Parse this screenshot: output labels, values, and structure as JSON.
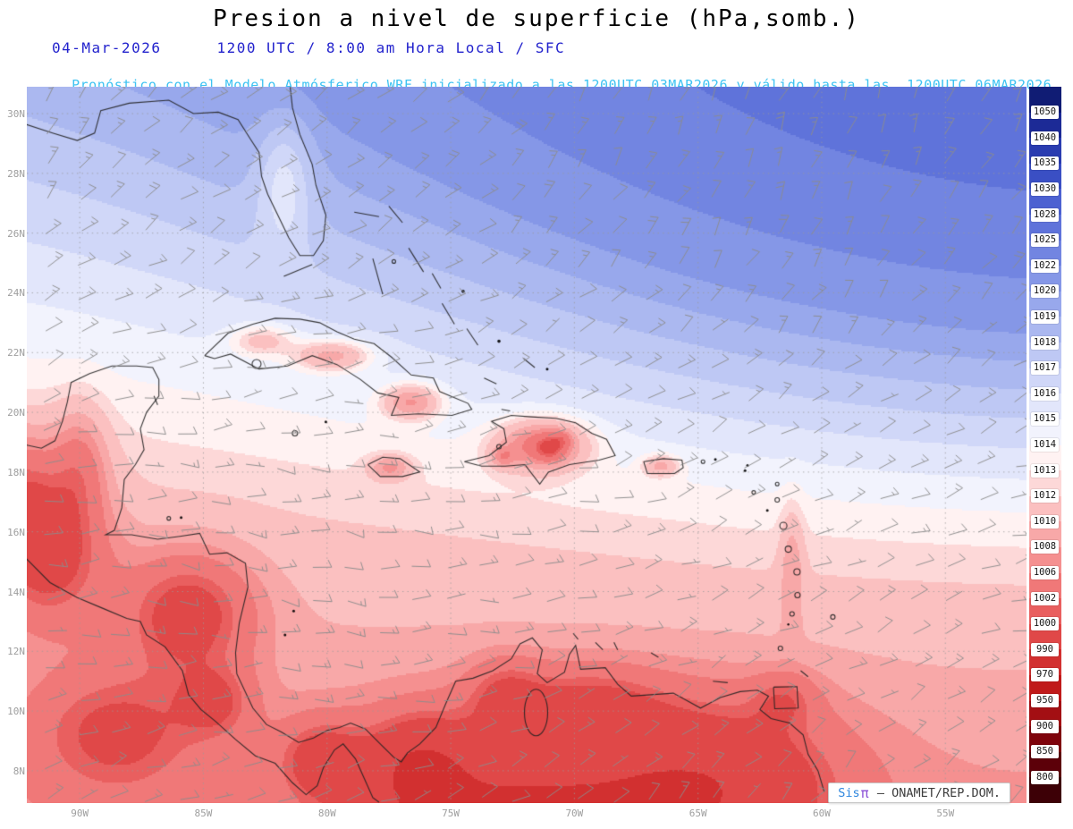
{
  "header": {
    "title": "Presion a nivel de superficie (hPa,somb.)",
    "date": "04-Mar-2026",
    "time_info": "1200 UTC / 8:00 am Hora Local / SFC",
    "forecast_info": "Pronóstico con el Modelo Atmósferico WRF inicializado a las 1200UTC_03MAR2026 y válido hasta las  1200UTC_06MAR2026"
  },
  "attribution": {
    "prefix": "Sis",
    "pi": "π",
    "suffix": " – ONAMET/REP.DOM."
  },
  "colors": {
    "title_text": "#000000",
    "date_line": "#2323cd",
    "forecast_line": "#3ec3f2",
    "axis_labels": "#9e9e9e",
    "coastline": "#222222",
    "wind_barbs": "#8c8c8c",
    "grid_dots": "#9b9b9b"
  },
  "chart_data": {
    "type": "heatmap",
    "title": "Presion a nivel de superficie (hPa,somb.)",
    "variable": "Presion a nivel de superficie",
    "units": "hPa",
    "model": "WRF",
    "init": "1200UTC_03MAR2026",
    "valid": "1200UTC_06MAR2026",
    "lat_ticks": [
      "30N",
      "28N",
      "26N",
      "24N",
      "22N",
      "20N",
      "18N",
      "16N",
      "14N",
      "12N",
      "10N",
      "8N"
    ],
    "lat_tick_values": [
      30,
      28,
      26,
      24,
      22,
      20,
      18,
      16,
      14,
      12,
      10,
      8
    ],
    "lon_ticks": [
      "90W",
      "85W",
      "80W",
      "75W",
      "70W",
      "65W",
      "60W",
      "55W"
    ],
    "lon_tick_values": [
      -90,
      -85,
      -80,
      -75,
      -70,
      -65,
      -60,
      -55
    ],
    "lat_range": [
      6.92,
      30.9
    ],
    "lon_range": [
      -92.14,
      -51.72
    ],
    "grid": "dotted",
    "wind_barbs": true,
    "colorbar_labels": [
      "1050",
      "1040",
      "1035",
      "1030",
      "1028",
      "1025",
      "1022",
      "1020",
      "1019",
      "1018",
      "1017",
      "1016",
      "1015",
      "1014",
      "1013",
      "1012",
      "1010",
      "1008",
      "1006",
      "1002",
      "1000",
      "990",
      "970",
      "950",
      "900",
      "850",
      "800"
    ],
    "levels_hpa": [
      800,
      850,
      900,
      950,
      970,
      990,
      1000,
      1002,
      1006,
      1008,
      1010,
      1012,
      1013,
      1014,
      1015,
      1016,
      1017,
      1018,
      1019,
      1020,
      1022,
      1025,
      1028,
      1030,
      1035,
      1040,
      1050
    ],
    "palette": [
      "#3d0006",
      "#5c0009",
      "#7f040c",
      "#a30f13",
      "#c01a1a",
      "#d23030",
      "#e04848",
      "#e95f5f",
      "#f07878",
      "#f59090",
      "#f8a8a8",
      "#fbc0c0",
      "#fdd8d8",
      "#fff2f2",
      "#f2f3fd",
      "#e2e6fb",
      "#d0d7f8",
      "#bec8f4",
      "#abb8f0",
      "#98a8ec",
      "#8597e7",
      "#7285e1",
      "#5f73da",
      "#4c61d1",
      "#3a4fc4",
      "#2a3cb0",
      "#1c2a96",
      "#101c74"
    ],
    "shading_range_visible": [
      800,
      1050
    ]
  }
}
